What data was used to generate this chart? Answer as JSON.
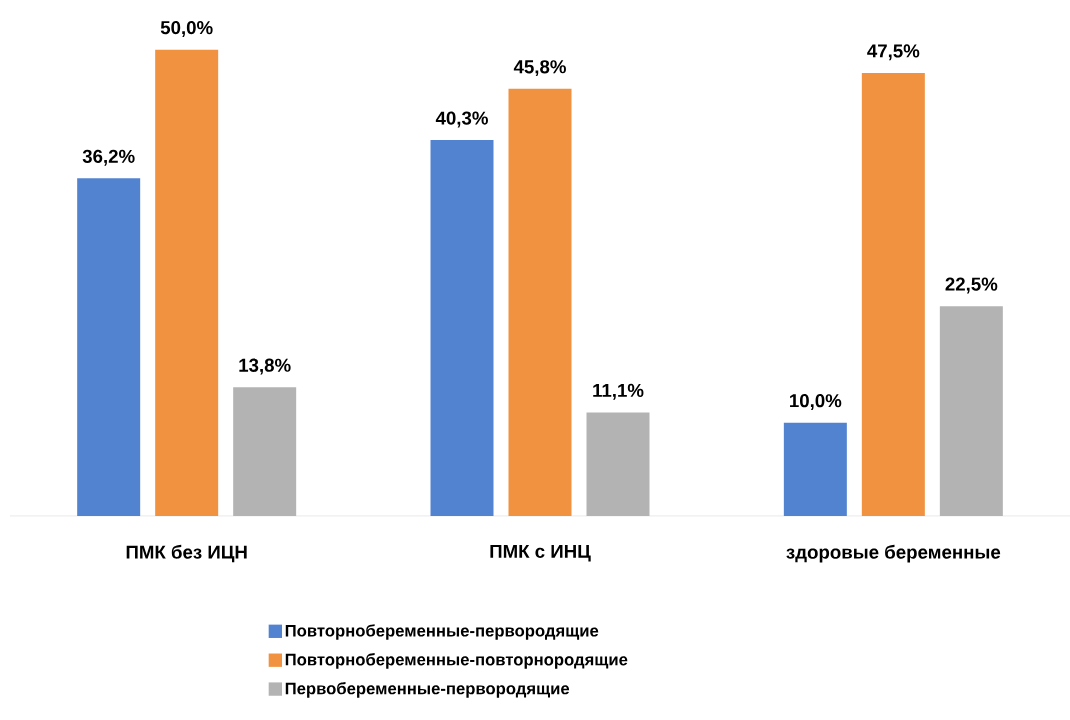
{
  "chart_data": {
    "type": "bar",
    "categories": [
      "ПМК без ИЦН",
      "ПМК с ИНЦ",
      "здоровые беременные"
    ],
    "series": [
      {
        "name": "Повторнобеременные-первородящие",
        "color": "#5283d0",
        "values": [
          36.2,
          40.3,
          10.0
        ],
        "value_labels": [
          "36,2%",
          "40,3%",
          "10,0%"
        ]
      },
      {
        "name": "Повторнобеременные-повторнородящие",
        "color": "#f0923f",
        "values": [
          50.0,
          45.8,
          47.5
        ],
        "value_labels": [
          "50,0%",
          "45,8%",
          "47,5%"
        ]
      },
      {
        "name": "Первобеременные-первородящие",
        "color": "#b3b3b3",
        "values": [
          13.8,
          11.1,
          22.5
        ],
        "value_labels": [
          "13,8%",
          "11,1%",
          "22,5%"
        ]
      }
    ],
    "legend": "bottom"
  }
}
